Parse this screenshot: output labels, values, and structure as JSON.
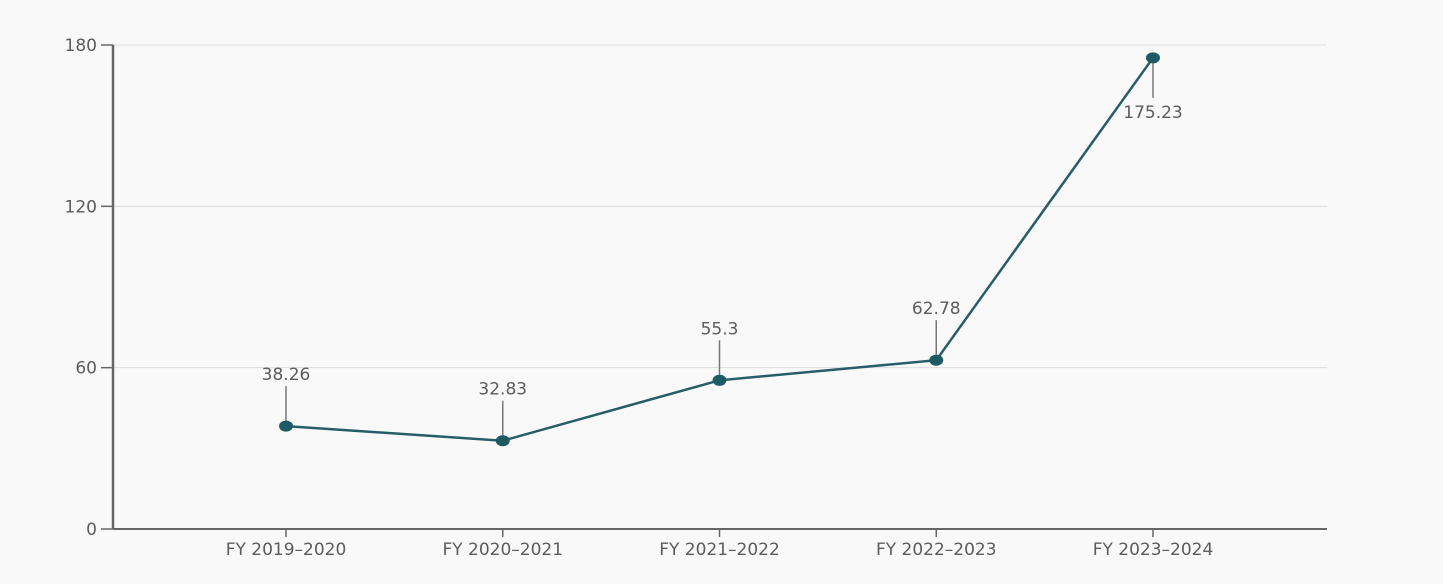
{
  "chart_data": {
    "type": "line",
    "categories": [
      "FY 2019–2020",
      "FY 2020–2021",
      "FY 2021–2022",
      "FY 2022–2023",
      "FY 2023–2024"
    ],
    "series": [
      {
        "values": [
          38.26,
          32.83,
          55.3,
          62.78,
          175.23
        ]
      }
    ],
    "data_labels": [
      "38.26",
      "32.83",
      "55.3",
      "62.78",
      "175.23"
    ],
    "ylim": [
      0,
      180
    ],
    "yticks": [
      0,
      60,
      120,
      180
    ],
    "grid": true,
    "legend": "none",
    "colors": {
      "line": "#275d68",
      "marker": "#1e5a63",
      "axis": "#666666",
      "grid": "#dddddd",
      "leader": "#777777"
    }
  }
}
